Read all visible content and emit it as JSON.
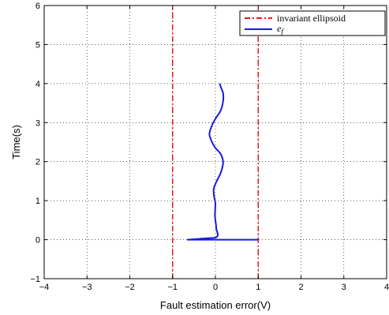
{
  "chart_data": {
    "type": "line",
    "title": "",
    "xlabel": "Fault estimation error(V)",
    "ylabel": "Time(s)",
    "xlim": [
      -4,
      4
    ],
    "ylim": [
      -1,
      6
    ],
    "xticks": [
      -4,
      -3,
      -2,
      -1,
      0,
      1,
      2,
      3,
      4
    ],
    "yticks": [
      -1,
      0,
      1,
      2,
      3,
      4,
      5,
      6
    ],
    "xtick_labels": [
      "−4",
      "−3",
      "−2",
      "−1",
      "0",
      "1",
      "2",
      "3",
      "4"
    ],
    "ytick_labels": [
      "−1",
      "0",
      "1",
      "2",
      "3",
      "4",
      "5",
      "6"
    ],
    "grid": true,
    "legend_position": "top-right",
    "series": [
      {
        "name": "invariant ellipsoid",
        "style": "dash-dot",
        "color": "#e41a1c",
        "segments": [
          [
            [
              -1,
              -1
            ],
            [
              -1,
              6
            ]
          ],
          [
            [
              1,
              -1
            ],
            [
              1,
              6
            ]
          ]
        ]
      },
      {
        "name": "e_f",
        "name_display": "e",
        "name_sub": "f",
        "style": "solid",
        "color": "#1a1adc",
        "x": [
          1.0,
          -0.65,
          0.0,
          0.02,
          -0.01,
          0.0,
          -0.01,
          -0.03,
          -0.04,
          0.03,
          0.1,
          0.15,
          0.18,
          0.12,
          0.0,
          -0.08,
          -0.14,
          -0.09,
          0.0,
          0.12,
          0.18,
          0.18,
          0.13,
          0.1
        ],
        "y": [
          0.0,
          0.0,
          0.05,
          0.3,
          0.6,
          0.9,
          1.0,
          1.1,
          1.3,
          1.5,
          1.65,
          1.8,
          2.0,
          2.2,
          2.35,
          2.5,
          2.7,
          2.9,
          3.1,
          3.3,
          3.55,
          3.75,
          3.9,
          4.0
        ]
      }
    ]
  }
}
